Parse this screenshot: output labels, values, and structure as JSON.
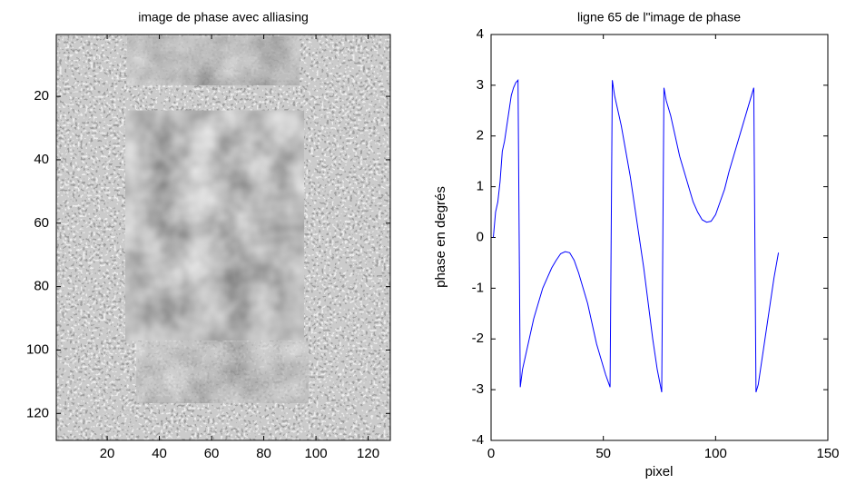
{
  "chart_data": [
    {
      "type": "image",
      "title": "image de phase avec alliasing",
      "xlim": [
        0.5,
        128.5
      ],
      "ylim": [
        0.5,
        128.5
      ],
      "y_reversed": true,
      "xticks": [
        20,
        40,
        60,
        80,
        100,
        120
      ],
      "yticks": [
        20,
        40,
        60,
        80,
        100,
        120
      ],
      "colormap": "gray"
    },
    {
      "type": "line",
      "title": "ligne 65 de l\"image de phase",
      "xlabel": "pixel",
      "ylabel": "phase en degrés",
      "xlim": [
        0,
        150
      ],
      "ylim": [
        -4,
        4
      ],
      "xticks": [
        0,
        50,
        100,
        150
      ],
      "yticks": [
        -4,
        -3,
        -2,
        -1,
        0,
        1,
        2,
        3,
        4
      ],
      "x": [
        1,
        2,
        3,
        4,
        5,
        6,
        7,
        8,
        9,
        10,
        11,
        12,
        13,
        14,
        15,
        17,
        19,
        21,
        23,
        25,
        27,
        29,
        31,
        33,
        35,
        37,
        39,
        41,
        43,
        45,
        47,
        49,
        51,
        53,
        54,
        55,
        56,
        58,
        60,
        62,
        64,
        66,
        68,
        70,
        72,
        74,
        76,
        77,
        78,
        80,
        82,
        84,
        86,
        88,
        90,
        92,
        94,
        96,
        98,
        100,
        102,
        104,
        106,
        108,
        110,
        112,
        114,
        116,
        117,
        118,
        119,
        120,
        122,
        124,
        126,
        128
      ],
      "series": [
        {
          "color": "#0000ff",
          "values": [
            0,
            0.5,
            0.7,
            1.1,
            1.7,
            1.9,
            2.2,
            2.5,
            2.8,
            2.95,
            3.05,
            3.1,
            -2.95,
            -2.6,
            -2.4,
            -2.0,
            -1.6,
            -1.3,
            -1.0,
            -0.8,
            -0.6,
            -0.45,
            -0.32,
            -0.28,
            -0.3,
            -0.45,
            -0.7,
            -1.0,
            -1.3,
            -1.7,
            -2.1,
            -2.4,
            -2.7,
            -2.95,
            3.1,
            2.8,
            2.6,
            2.2,
            1.7,
            1.2,
            0.6,
            0.0,
            -0.6,
            -1.3,
            -2.0,
            -2.6,
            -3.05,
            2.95,
            2.7,
            2.4,
            2.0,
            1.6,
            1.3,
            1.0,
            0.7,
            0.5,
            0.35,
            0.3,
            0.32,
            0.45,
            0.7,
            0.95,
            1.3,
            1.6,
            1.9,
            2.2,
            2.5,
            2.8,
            2.95,
            -3.05,
            -2.9,
            -2.6,
            -2.0,
            -1.4,
            -0.8,
            -0.3
          ]
        }
      ]
    }
  ]
}
